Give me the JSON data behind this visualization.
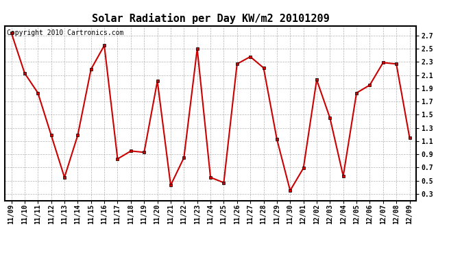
{
  "title": "Solar Radiation per Day KW/m2 20101209",
  "copyright_text": "Copyright 2010 Cartronics.com",
  "dates": [
    "11/09",
    "11/10",
    "11/11",
    "11/12",
    "11/13",
    "11/14",
    "11/15",
    "11/16",
    "11/17",
    "11/18",
    "11/19",
    "11/20",
    "11/21",
    "11/22",
    "11/23",
    "11/24",
    "11/25",
    "11/26",
    "11/27",
    "11/28",
    "11/29",
    "11/30",
    "12/01",
    "12/02",
    "12/03",
    "12/04",
    "12/05",
    "12/06",
    "12/07",
    "12/08",
    "12/09"
  ],
  "values": [
    2.74,
    2.13,
    1.83,
    1.19,
    0.55,
    1.19,
    2.19,
    2.55,
    0.83,
    0.95,
    0.93,
    2.01,
    0.43,
    0.85,
    2.5,
    0.55,
    0.47,
    2.27,
    2.38,
    2.21,
    1.13,
    0.35,
    0.69,
    2.03,
    1.45,
    0.57,
    1.83,
    1.95,
    2.29,
    2.27,
    1.15
  ],
  "line_color": "#cc0000",
  "marker": "s",
  "marker_size": 3,
  "line_width": 1.5,
  "ylim": [
    0.2,
    2.85
  ],
  "yticks": [
    0.3,
    0.5,
    0.7,
    0.9,
    1.1,
    1.3,
    1.5,
    1.7,
    1.9,
    2.1,
    2.3,
    2.5,
    2.7
  ],
  "bg_color": "#ffffff",
  "grid_color": "#aaaaaa",
  "title_fontsize": 11,
  "tick_fontsize": 7,
  "copyright_fontsize": 7
}
